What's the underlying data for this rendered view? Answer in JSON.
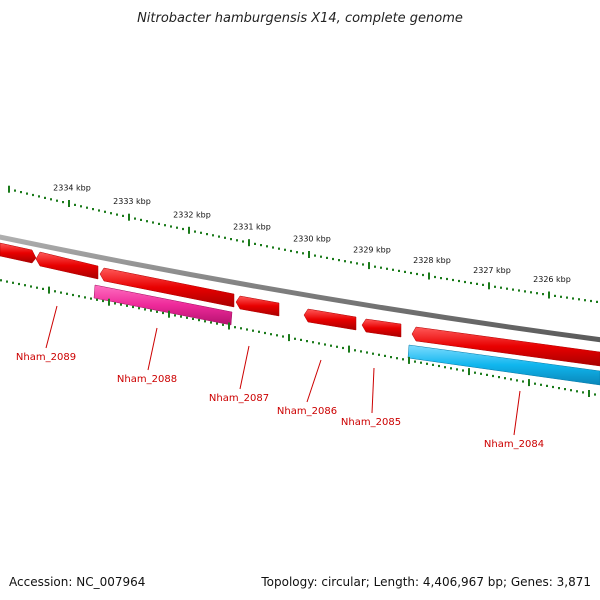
{
  "title": "Nitrobacter hamburgensis X14, complete genome",
  "footer": {
    "accession": "Accession: NC_007964",
    "summary": "Topology: circular; Length: 4,406,967 bp; Genes: 3,871"
  },
  "colors": {
    "forward_gene": "#ee0000",
    "reverse_gene_magenta": "#ee2a9a",
    "reverse_gene_cyan": "#10b6ee",
    "backbone": "#808080",
    "tick_marks": "#1a7a1a",
    "gene_label": "#cc0000"
  },
  "scale_ticks": [
    {
      "label": "2334 kbp"
    },
    {
      "label": "2333 kbp"
    },
    {
      "label": "2332 kbp"
    },
    {
      "label": "2331 kbp"
    },
    {
      "label": "2330 kbp"
    },
    {
      "label": "2329 kbp"
    },
    {
      "label": "2328 kbp"
    },
    {
      "label": "2327 kbp"
    },
    {
      "label": "2326 kbp"
    }
  ],
  "genes": [
    {
      "name": "Nham_2089",
      "strand": "forward"
    },
    {
      "name": "Nham_2088",
      "strand": "reverse"
    },
    {
      "name": "Nham_2087",
      "strand": "forward"
    },
    {
      "name": "Nham_2086",
      "strand": "forward"
    },
    {
      "name": "Nham_2085",
      "strand": "forward"
    },
    {
      "name": "Nham_2084",
      "strand": "reverse"
    }
  ]
}
